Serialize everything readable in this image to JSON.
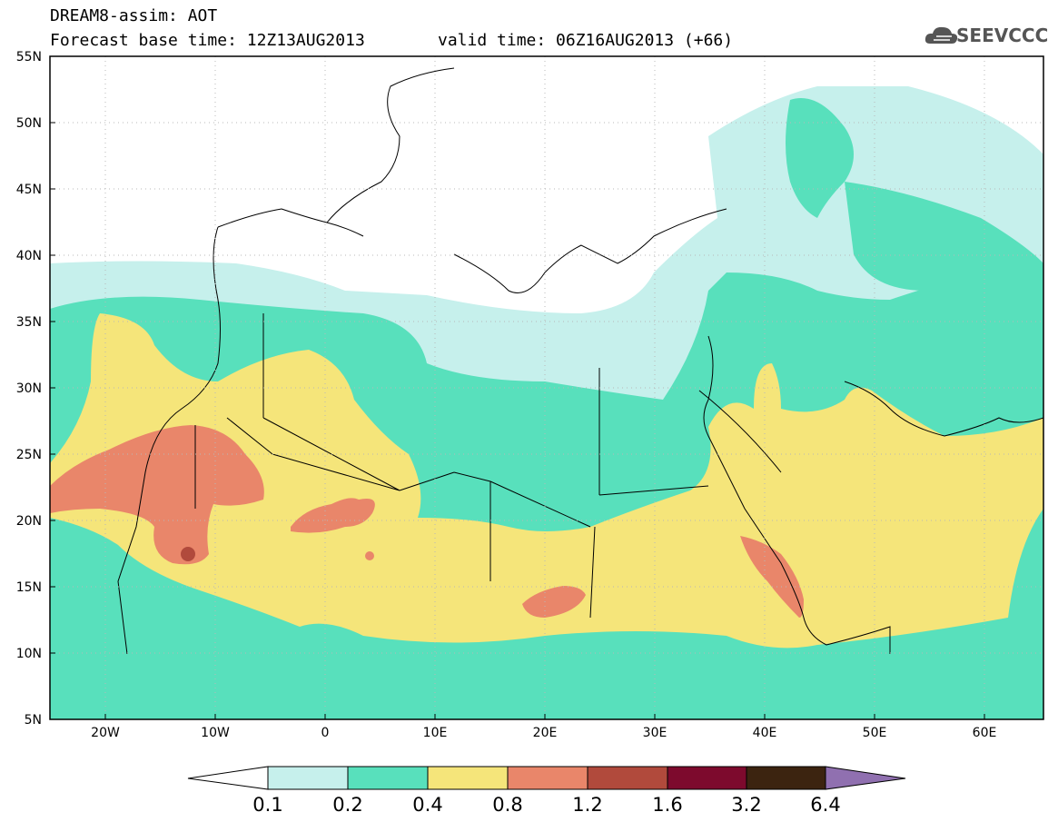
{
  "title_line1": "DREAM8-assim: AOT",
  "title_base": "Forecast base time: 12Z13AUG2013",
  "title_valid": "valid time: 06Z16AUG2013 (+66)",
  "logo_text": "SEEVCCC",
  "icons": {
    "logo": "cloud-logo-icon"
  },
  "map_data": {
    "variable": "AOT",
    "lat_ticks": [
      "55N",
      "50N",
      "45N",
      "40N",
      "35N",
      "30N",
      "25N",
      "20N",
      "15N",
      "10N",
      "5N"
    ],
    "lon_ticks": [
      "20W",
      "10W",
      "0",
      "10E",
      "20E",
      "30E",
      "40E",
      "50E",
      "60E"
    ],
    "colorbar": {
      "levels": [
        "0.1",
        "0.2",
        "0.4",
        "0.8",
        "1.2",
        "1.6",
        "3.2",
        "6.4"
      ],
      "colors": [
        "#ffffff",
        "#c6f0ec",
        "#58e0bc",
        "#f5e57a",
        "#e9866a",
        "#b14a3c",
        "#7d0a2d",
        "#3c2410",
        "#9070b0"
      ]
    }
  }
}
